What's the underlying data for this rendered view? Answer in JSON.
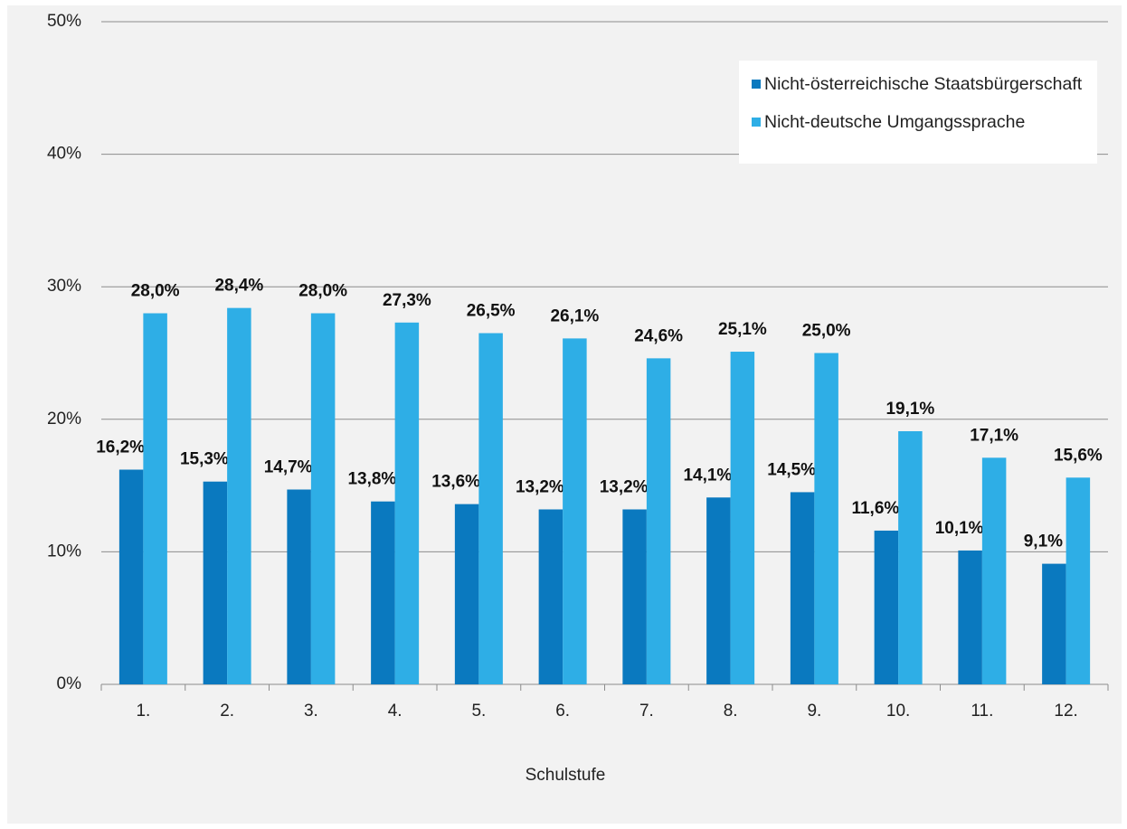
{
  "chart_data": {
    "type": "bar",
    "x_label": "Schulstufe",
    "categories": [
      "1.",
      "2.",
      "3.",
      "4.",
      "5.",
      "6.",
      "7.",
      "8.",
      "9.",
      "10.",
      "11.",
      "12."
    ],
    "series": [
      {
        "name": "Nicht-österreichische Staatsbürgerschaft",
        "color": "#0a79bf",
        "values": [
          16.2,
          15.3,
          14.7,
          13.8,
          13.6,
          13.2,
          13.2,
          14.1,
          14.5,
          11.6,
          10.1,
          9.1
        ],
        "value_labels": [
          "16,2%",
          "15,3%",
          "14,7%",
          "13,8%",
          "13,6%",
          "13,2%",
          "13,2%",
          "14,1%",
          "14,5%",
          "11,6%",
          "10,1%",
          "9,1%"
        ]
      },
      {
        "name": "Nicht-deutsche Umgangssprache",
        "color": "#2eaee6",
        "values": [
          28.0,
          28.4,
          28.0,
          27.3,
          26.5,
          26.1,
          24.6,
          25.1,
          25.0,
          19.1,
          17.1,
          15.6
        ],
        "value_labels": [
          "28,0%",
          "28,4%",
          "28,0%",
          "27,3%",
          "26,5%",
          "26,1%",
          "24,6%",
          "25,1%",
          "25,0%",
          "19,1%",
          "17,1%",
          "15,6%"
        ]
      }
    ],
    "ylim": [
      0,
      50
    ],
    "yticks": [
      {
        "value": 0,
        "label": "0%"
      },
      {
        "value": 10,
        "label": "10%"
      },
      {
        "value": 20,
        "label": "20%"
      },
      {
        "value": 30,
        "label": "30%"
      },
      {
        "value": 40,
        "label": "40%"
      },
      {
        "value": 50,
        "label": "50%"
      }
    ],
    "grid": true,
    "legend": "top-right"
  }
}
